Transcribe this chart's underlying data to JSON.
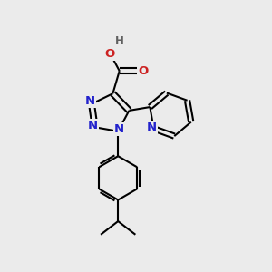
{
  "bg_color": "#ebebeb",
  "bond_color": "#000000",
  "n_color": "#2222cc",
  "o_color": "#cc2222",
  "h_color": "#606060",
  "line_width": 1.5,
  "font_size": 8.5,
  "figsize": [
    3.0,
    3.0
  ],
  "dpi": 100,
  "xlim": [
    0,
    10
  ],
  "ylim": [
    0,
    10
  ]
}
